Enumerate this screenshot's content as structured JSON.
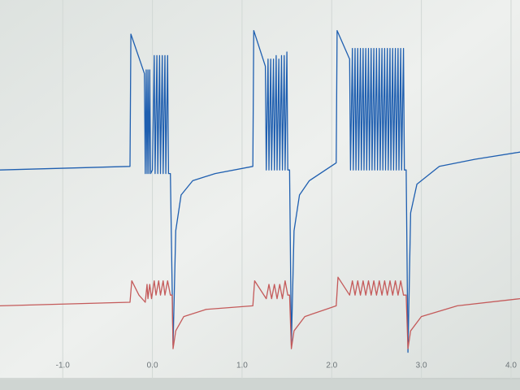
{
  "chart_data": {
    "type": "line",
    "xlim": [
      -1.7,
      4.1
    ],
    "ylim": [
      0,
      100
    ],
    "xticks": [
      {
        "value": -1,
        "label": "-1.0"
      },
      {
        "value": 0,
        "label": "0.0"
      },
      {
        "value": 1,
        "label": "1.0"
      },
      {
        "value": 2,
        "label": "2.0"
      },
      {
        "value": 3,
        "label": "3.0"
      },
      {
        "value": 4,
        "label": "4.0"
      }
    ],
    "grid": true,
    "series": [
      {
        "color": "#1f5fb0",
        "x": [
          -1.7,
          -0.25,
          -0.24,
          -0.09,
          -0.08,
          -0.07,
          -0.06,
          -0.05,
          -0.04,
          -0.03,
          -0.02,
          0.0,
          0.02,
          0.03,
          0.05,
          0.06,
          0.08,
          0.09,
          0.11,
          0.12,
          0.14,
          0.15,
          0.17,
          0.18,
          0.2,
          0.23,
          0.26,
          0.32,
          0.45,
          0.7,
          1.12,
          1.13,
          1.26,
          1.27,
          1.29,
          1.3,
          1.32,
          1.33,
          1.35,
          1.36,
          1.38,
          1.39,
          1.41,
          1.42,
          1.44,
          1.45,
          1.47,
          1.48,
          1.5,
          1.51,
          1.53,
          1.55,
          1.58,
          1.64,
          1.75,
          2.05,
          2.06,
          2.2,
          2.21,
          2.23,
          2.24,
          2.26,
          2.27,
          2.29,
          2.3,
          2.32,
          2.33,
          2.35,
          2.36,
          2.38,
          2.39,
          2.41,
          2.42,
          2.44,
          2.45,
          2.47,
          2.48,
          2.5,
          2.51,
          2.53,
          2.54,
          2.56,
          2.57,
          2.59,
          2.6,
          2.62,
          2.63,
          2.65,
          2.66,
          2.68,
          2.69,
          2.71,
          2.72,
          2.74,
          2.75,
          2.77,
          2.78,
          2.8,
          2.81,
          2.83,
          2.85,
          2.88,
          2.95,
          3.2,
          3.6,
          4.1
        ],
        "values": [
          57,
          58,
          95,
          84,
          56,
          85,
          56,
          85,
          56,
          85,
          56,
          57,
          89,
          56,
          89,
          56,
          89,
          56,
          89,
          56,
          89,
          56,
          89,
          56,
          56,
          8,
          40,
          50,
          54,
          56,
          58,
          96,
          86,
          57,
          88,
          57,
          88,
          57,
          88,
          57,
          89,
          57,
          88,
          57,
          89,
          57,
          89,
          57,
          90,
          57,
          57,
          8,
          40,
          50,
          54,
          59,
          96,
          88,
          57,
          91,
          57,
          91,
          57,
          91,
          57,
          91,
          57,
          91,
          57,
          91,
          57,
          91,
          57,
          91,
          57,
          91,
          57,
          91,
          57,
          91,
          57,
          91,
          57,
          91,
          57,
          91,
          57,
          91,
          57,
          91,
          57,
          91,
          57,
          91,
          57,
          91,
          57,
          91,
          57,
          57,
          6,
          45,
          53,
          58,
          60,
          62
        ]
      },
      {
        "color": "#c45a5a",
        "x": [
          -1.7,
          -0.25,
          -0.23,
          -0.15,
          -0.08,
          -0.06,
          -0.05,
          -0.03,
          -0.01,
          0.02,
          0.04,
          0.07,
          0.09,
          0.12,
          0.14,
          0.17,
          0.2,
          0.22,
          0.23,
          0.26,
          0.35,
          0.6,
          1.12,
          1.14,
          1.27,
          1.3,
          1.33,
          1.36,
          1.39,
          1.42,
          1.45,
          1.48,
          1.51,
          1.53,
          1.55,
          1.58,
          1.7,
          2.05,
          2.07,
          2.2,
          2.23,
          2.26,
          2.29,
          2.32,
          2.35,
          2.38,
          2.41,
          2.44,
          2.47,
          2.5,
          2.53,
          2.56,
          2.59,
          2.62,
          2.65,
          2.68,
          2.71,
          2.74,
          2.77,
          2.8,
          2.83,
          2.85,
          2.88,
          3.0,
          3.4,
          4.1
        ],
        "values": [
          19,
          20,
          26,
          22,
          20,
          25,
          21,
          25,
          21,
          26,
          22,
          26,
          22,
          26,
          22,
          26,
          22,
          22,
          7,
          12,
          16,
          18,
          19,
          26,
          21,
          25,
          21,
          25,
          21,
          25,
          21,
          26,
          22,
          22,
          7,
          12,
          16,
          19,
          27,
          22,
          26,
          22,
          26,
          22,
          26,
          22,
          26,
          22,
          26,
          22,
          26,
          22,
          26,
          22,
          26,
          22,
          26,
          22,
          26,
          22,
          22,
          7,
          12,
          16,
          19,
          21
        ]
      }
    ]
  }
}
